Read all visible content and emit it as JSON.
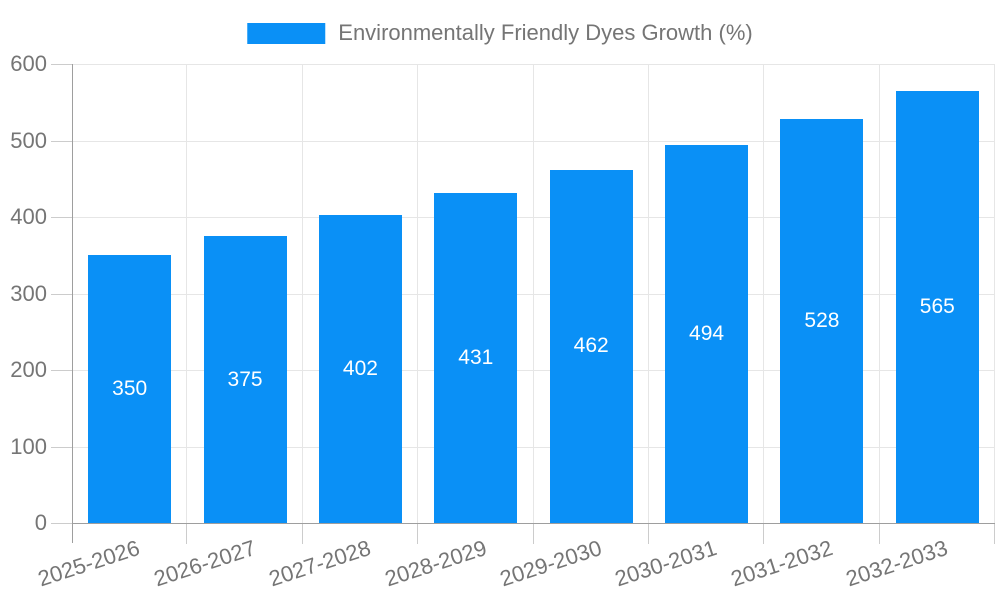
{
  "legend": {
    "label": "Environmentally Friendly Dyes Growth (%)"
  },
  "chart_data": {
    "type": "bar",
    "title": "",
    "series_name": "Environmentally Friendly Dyes Growth (%)",
    "categories": [
      "2025-2026",
      "2026-2027",
      "2027-2028",
      "2028-2029",
      "2029-2030",
      "2030-2031",
      "2031-2032",
      "2032-2033"
    ],
    "values": [
      350,
      375,
      402,
      431,
      462,
      494,
      528,
      565
    ],
    "value_labels": [
      "350",
      "375",
      "402",
      "431",
      "462",
      "494",
      "528",
      "565"
    ],
    "xlabel": "",
    "ylabel": "",
    "ylim": [
      0,
      600
    ],
    "y_ticks": [
      0,
      100,
      200,
      300,
      400,
      500,
      600
    ],
    "grid": "on",
    "legend_position": "top",
    "bar_color": "#0A90F6",
    "value_label_color": "#ffffff",
    "axis_text_color": "#757575",
    "grid_color": "#e6e6e6",
    "tick_color": "#cccccc",
    "axis_line_color": "#9e9e9e",
    "background_color": "#ffffff"
  }
}
